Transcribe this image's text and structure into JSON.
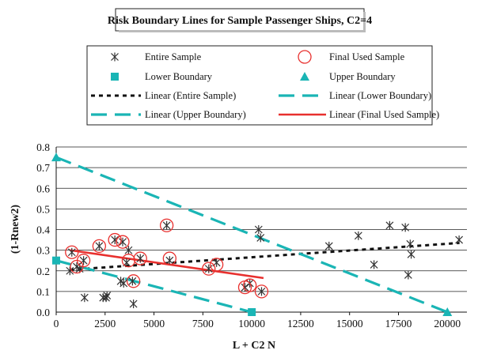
{
  "chart_data": {
    "type": "scatter",
    "title": "Risk Boundary Lines for Sample Passenger Ships, C2=4",
    "xlabel": "L + C2 N",
    "ylabel": "(1-Rnew2)",
    "xlim": [
      0,
      21000
    ],
    "ylim": [
      0,
      0.8
    ],
    "x_ticks": [
      0,
      2500,
      5000,
      7500,
      10000,
      12500,
      15000,
      17500,
      20000
    ],
    "y_ticks": [
      0.0,
      0.1,
      0.2,
      0.3,
      0.4,
      0.5,
      0.6,
      0.7,
      0.8
    ],
    "y_tick_labels": [
      "0.0",
      "0.1",
      "0.2",
      "0.3",
      "0.4",
      "0.5",
      "0.6",
      "0.7",
      "0.8"
    ],
    "grid": "horizontal",
    "legend_placement": "top",
    "legend": [
      {
        "key": "entire",
        "label": "Entire Sample",
        "marker": "asterisk",
        "color": "#333333"
      },
      {
        "key": "final",
        "label": "Final Used Sample",
        "marker": "circle",
        "color": "#e8302e"
      },
      {
        "key": "lower",
        "label": "Lower Boundary",
        "marker": "square",
        "color": "#1ab5b5"
      },
      {
        "key": "upper",
        "label": "Upper Boundary",
        "marker": "triangle",
        "color": "#1ab5b5"
      },
      {
        "key": "lin_entire",
        "label": "Linear (Entire Sample)",
        "line": "dotted",
        "color": "#111111"
      },
      {
        "key": "lin_lower",
        "label": "Linear (Lower Boundary)",
        "line": "dashed",
        "color": "#1ab5b5"
      },
      {
        "key": "lin_upper",
        "label": "Linear (Upper Boundary)",
        "line": "dashed",
        "color": "#1ab5b5"
      },
      {
        "key": "lin_final",
        "label": "Linear (Final Used Sample)",
        "line": "solid",
        "color": "#e8302e"
      }
    ],
    "series": [
      {
        "name": "Entire Sample",
        "x": [
          700,
          800,
          1050,
          1200,
          1400,
          1450,
          2200,
          2400,
          2550,
          2600,
          3000,
          3300,
          3400,
          3450,
          3600,
          3700,
          3900,
          3950,
          4300,
          5650,
          5800,
          7800,
          8200,
          9650,
          9900,
          10350,
          10450,
          10500,
          13950,
          15450,
          16250,
          17050,
          17850,
          18000,
          18100,
          18150,
          20600
        ],
        "y": [
          0.2,
          0.29,
          0.22,
          0.21,
          0.25,
          0.07,
          0.32,
          0.07,
          0.07,
          0.08,
          0.35,
          0.15,
          0.34,
          0.14,
          0.24,
          0.3,
          0.15,
          0.04,
          0.26,
          0.42,
          0.25,
          0.21,
          0.24,
          0.12,
          0.14,
          0.4,
          0.36,
          0.1,
          0.32,
          0.37,
          0.23,
          0.42,
          0.41,
          0.18,
          0.33,
          0.28,
          0.35
        ]
      },
      {
        "name": "Final Used Sample",
        "x": [
          800,
          1050,
          1400,
          2200,
          3000,
          3400,
          3700,
          3950,
          4300,
          5650,
          5800,
          7800,
          8200,
          9650,
          9900,
          10500
        ],
        "y": [
          0.29,
          0.22,
          0.25,
          0.32,
          0.35,
          0.34,
          0.25,
          0.15,
          0.26,
          0.42,
          0.26,
          0.21,
          0.23,
          0.12,
          0.13,
          0.1
        ]
      },
      {
        "name": "Lower Boundary",
        "x": [
          0,
          10000
        ],
        "y": [
          0.25,
          0.0
        ]
      },
      {
        "name": "Upper Boundary",
        "x": [
          0,
          20000
        ],
        "y": [
          0.75,
          0.0
        ]
      }
    ],
    "trendlines": [
      {
        "name": "Linear (Entire Sample)",
        "x": [
          700,
          20600
        ],
        "y": [
          0.205,
          0.335
        ]
      },
      {
        "name": "Linear (Lower Boundary)",
        "x": [
          0,
          10000
        ],
        "y": [
          0.25,
          0.0
        ]
      },
      {
        "name": "Linear (Upper Boundary)",
        "x": [
          0,
          20000
        ],
        "y": [
          0.75,
          0.0
        ]
      },
      {
        "name": "Linear (Final Used Sample)",
        "x": [
          700,
          10600
        ],
        "y": [
          0.3,
          0.165
        ]
      }
    ]
  }
}
